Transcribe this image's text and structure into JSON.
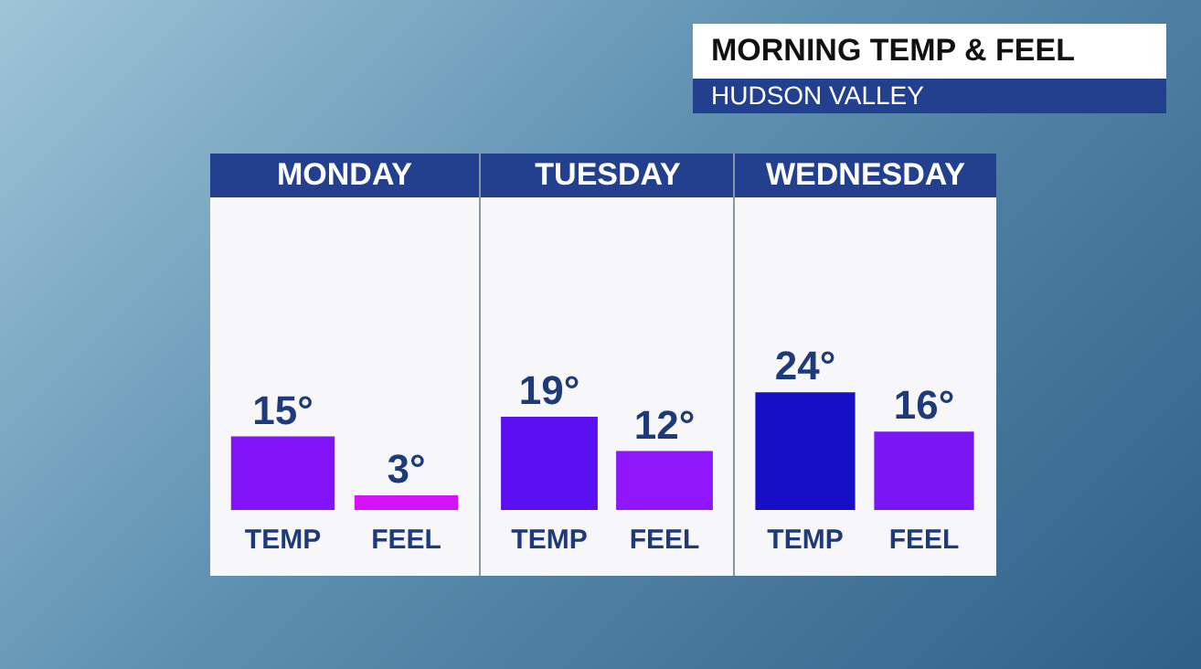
{
  "chart_data": [
    {
      "type": "other",
      "title": "MORNING TEMP & FEEL",
      "subtitle": "HUDSON VALLEY"
    },
    {
      "type": "bar",
      "title": "MONDAY",
      "categories": [
        "TEMP",
        "FEEL"
      ],
      "values": [
        15,
        3
      ],
      "colors": [
        "#8412f8",
        "#d413f6"
      ],
      "value_labels": [
        "15°",
        "3°"
      ],
      "tick_labels": "x",
      "grid": false,
      "legend": false
    },
    {
      "type": "bar",
      "title": "TUESDAY",
      "categories": [
        "TEMP",
        "FEEL"
      ],
      "values": [
        19,
        12
      ],
      "colors": [
        "#5a10f0",
        "#8e16f8"
      ],
      "value_labels": [
        "19°",
        "12°"
      ],
      "tick_labels": "x",
      "grid": false,
      "legend": false
    },
    {
      "type": "bar",
      "title": "WEDNESDAY",
      "categories": [
        "TEMP",
        "FEEL"
      ],
      "values": [
        24,
        16
      ],
      "colors": [
        "#1510c8",
        "#7a16f4"
      ],
      "value_labels": [
        "24°",
        "16°"
      ],
      "tick_labels": "x",
      "grid": false,
      "legend": false
    }
  ]
}
